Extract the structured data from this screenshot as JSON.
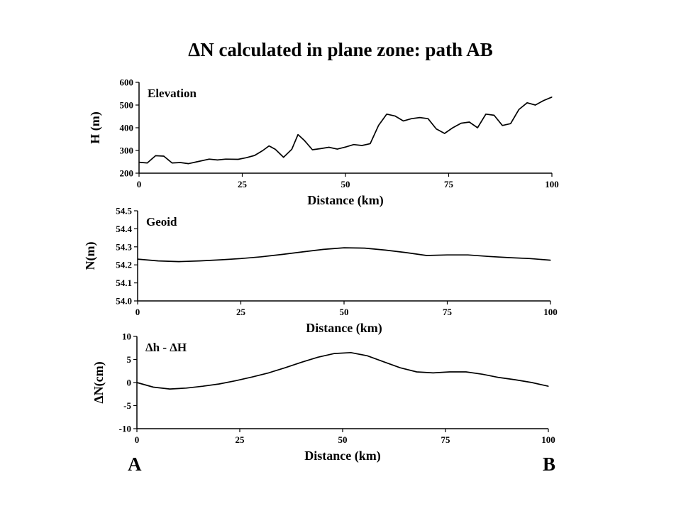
{
  "title": "ΔN calculated in plane zone: path AB",
  "endpoints": {
    "start": "A",
    "end": "B"
  },
  "chart_data": [
    {
      "type": "line",
      "panel_label": "Elevation",
      "xlabel": "Distance (km)",
      "ylabel": "H (m)",
      "xlim": [
        0,
        100
      ],
      "ylim": [
        200,
        600
      ],
      "xticks": [
        0,
        25,
        50,
        75,
        100
      ],
      "yticks": [
        200,
        300,
        400,
        500,
        600
      ],
      "grid": false,
      "series": [
        {
          "x": [
            0,
            2,
            4,
            6,
            7,
            8,
            10,
            12,
            14,
            17,
            19,
            21,
            24,
            26,
            28,
            30,
            31.5,
            33,
            35,
            37,
            38.5,
            40,
            42,
            44,
            46,
            48,
            50,
            52,
            54,
            56,
            58,
            60,
            62,
            64,
            66,
            68,
            70,
            72,
            74,
            76,
            78,
            80,
            82,
            84,
            86,
            88,
            90,
            92,
            94,
            96,
            98,
            100
          ],
          "y": [
            248,
            245,
            277,
            275,
            260,
            245,
            247,
            242,
            250,
            262,
            258,
            262,
            261,
            268,
            278,
            300,
            320,
            305,
            270,
            305,
            370,
            345,
            303,
            308,
            314,
            306,
            315,
            326,
            322,
            330,
            410,
            460,
            452,
            430,
            440,
            445,
            440,
            395,
            375,
            400,
            420,
            425,
            400,
            460,
            455,
            410,
            418,
            480,
            510,
            500,
            520,
            535
          ]
        }
      ]
    },
    {
      "type": "line",
      "panel_label": "Geoid",
      "xlabel": "Distance (km)",
      "ylabel": "N(m)",
      "xlim": [
        0,
        100
      ],
      "ylim": [
        54.0,
        54.5
      ],
      "xticks": [
        0,
        25,
        50,
        75,
        100
      ],
      "yticks": [
        54.0,
        54.1,
        54.2,
        54.3,
        54.4,
        54.5
      ],
      "grid": false,
      "series": [
        {
          "x": [
            0,
            5,
            10,
            15,
            20,
            25,
            30,
            35,
            40,
            45,
            50,
            55,
            60,
            65,
            70,
            75,
            80,
            85,
            90,
            95,
            100
          ],
          "y": [
            54.232,
            54.222,
            54.218,
            54.222,
            54.228,
            54.235,
            54.245,
            54.258,
            54.272,
            54.286,
            54.295,
            54.293,
            54.282,
            54.268,
            54.252,
            54.255,
            54.255,
            54.247,
            54.24,
            54.235,
            54.226
          ]
        }
      ]
    },
    {
      "type": "line",
      "panel_label": "Δh - ΔH",
      "xlabel": "Distance (km)",
      "ylabel": "ΔN(cm)",
      "xlim": [
        0,
        100
      ],
      "ylim": [
        -10,
        10
      ],
      "xticks": [
        0,
        25,
        50,
        75,
        100
      ],
      "yticks": [
        -10,
        -5,
        0,
        5,
        10
      ],
      "grid": false,
      "series": [
        {
          "x": [
            0,
            4,
            8,
            12,
            16,
            20,
            24,
            28,
            32,
            36,
            40,
            44,
            48,
            52,
            56,
            60,
            64,
            68,
            72,
            76,
            80,
            84,
            88,
            92,
            96,
            100
          ],
          "y": [
            0,
            -1.0,
            -1.4,
            -1.2,
            -0.8,
            -0.3,
            0.4,
            1.2,
            2.1,
            3.2,
            4.4,
            5.5,
            6.3,
            6.5,
            5.8,
            4.5,
            3.2,
            2.3,
            2.1,
            2.3,
            2.3,
            1.8,
            1.1,
            0.6,
            0.0,
            -0.8
          ]
        }
      ]
    }
  ]
}
